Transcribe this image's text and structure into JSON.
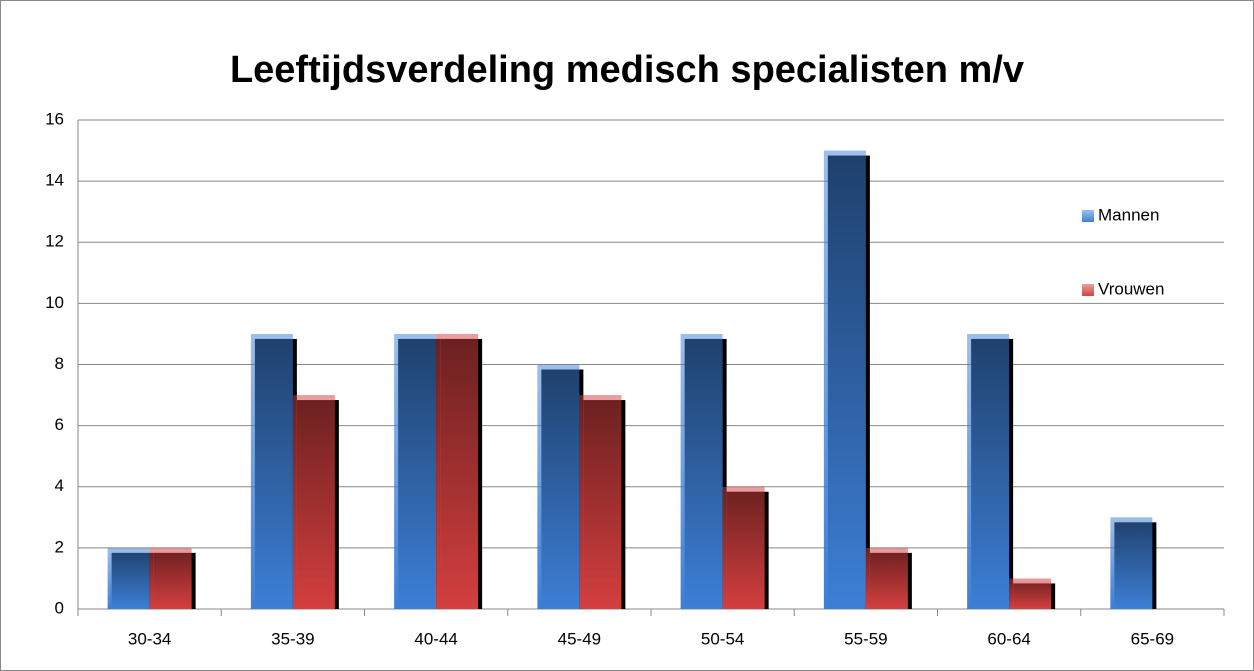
{
  "chart_data": {
    "type": "bar",
    "title": "Leeftijdsverdeling medisch specialisten m/v",
    "categories": [
      "30-34",
      "35-39",
      "40-44",
      "45-49",
      "50-54",
      "55-59",
      "60-64",
      "65-69"
    ],
    "series": [
      {
        "name": "Mannen",
        "color": "#3d7fd6",
        "values": [
          2,
          9,
          9,
          8,
          9,
          15,
          9,
          3
        ]
      },
      {
        "name": "Vrouwen",
        "color": "#d43f3f",
        "values": [
          2,
          7,
          9,
          7,
          4,
          2,
          1,
          0
        ]
      }
    ],
    "ylim": [
      0,
      16
    ],
    "yticks": [
      0,
      2,
      4,
      6,
      8,
      10,
      12,
      14,
      16
    ],
    "grid": true,
    "legend": "right"
  }
}
